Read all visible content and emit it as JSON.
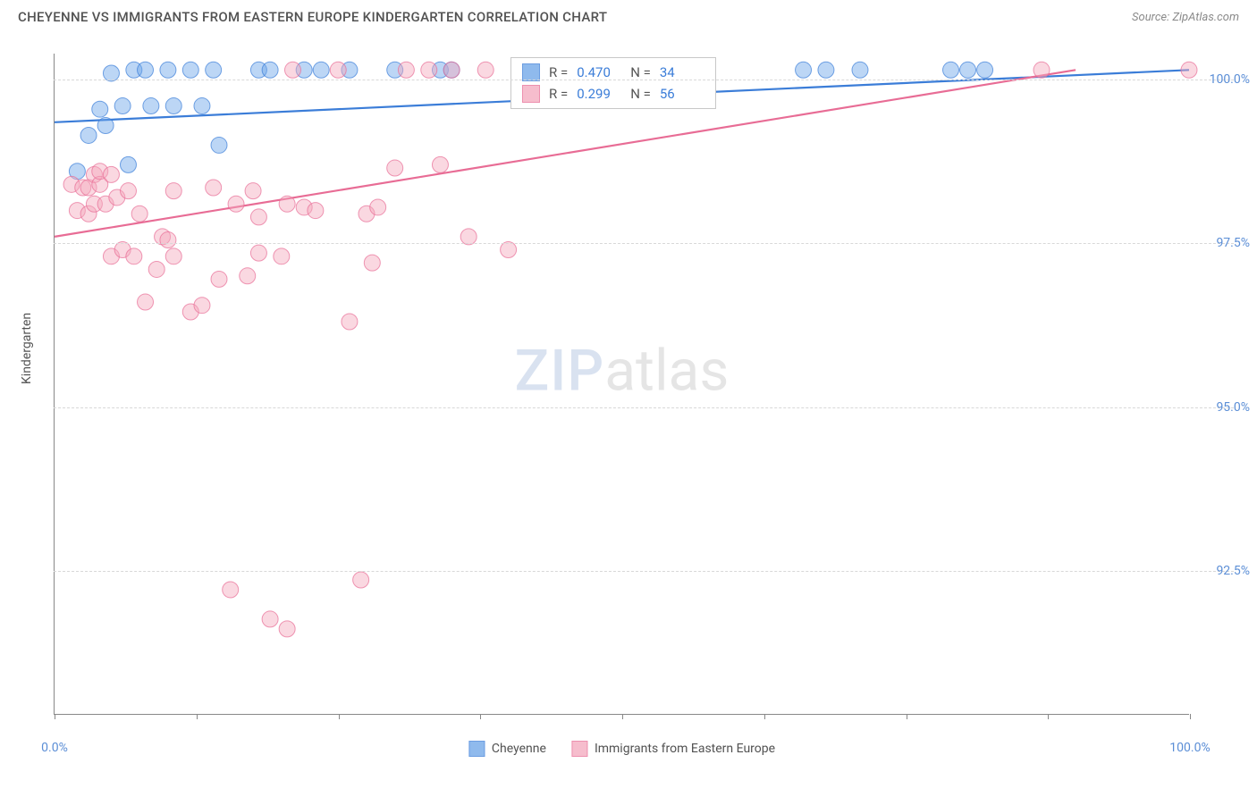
{
  "header": {
    "title": "CHEYENNE VS IMMIGRANTS FROM EASTERN EUROPE KINDERGARTEN CORRELATION CHART",
    "source_prefix": "Source: ",
    "source_name": "ZipAtlas.com"
  },
  "chart": {
    "type": "scatter",
    "ylabel": "Kindergarten",
    "xlim": [
      0,
      100
    ],
    "ylim": [
      90.3,
      100.4
    ],
    "xticks": [
      0,
      12.5,
      25,
      37.5,
      50,
      62.5,
      75,
      87.5,
      100
    ],
    "xtick_labels": {
      "0": "0.0%",
      "100": "100.0%"
    },
    "yticks": [
      92.5,
      95.0,
      97.5,
      100.0
    ],
    "ytick_labels": [
      "92.5%",
      "95.0%",
      "97.5%",
      "100.0%"
    ],
    "background_color": "#ffffff",
    "grid_color": "#d8d8d8",
    "axis_color": "#888888",
    "marker_radius": 9,
    "marker_opacity": 0.45,
    "line_width": 2.2,
    "series": [
      {
        "name": "Cheyenne",
        "color": "#6aa3e8",
        "stroke": "#3b7dd8",
        "R": "0.470",
        "N": "34",
        "trend": {
          "x1": 0,
          "y1": 99.35,
          "x2": 100,
          "y2": 100.15
        },
        "points": [
          [
            2,
            98.6
          ],
          [
            3,
            99.15
          ],
          [
            4,
            99.55
          ],
          [
            4.5,
            99.3
          ],
          [
            5,
            100.1
          ],
          [
            6,
            99.6
          ],
          [
            6.5,
            98.7
          ],
          [
            7,
            100.15
          ],
          [
            8,
            100.15
          ],
          [
            8.5,
            99.6
          ],
          [
            10,
            100.15
          ],
          [
            10.5,
            99.6
          ],
          [
            12,
            100.15
          ],
          [
            13,
            99.6
          ],
          [
            14,
            100.15
          ],
          [
            14.5,
            99.0
          ],
          [
            18,
            100.15
          ],
          [
            19,
            100.15
          ],
          [
            22,
            100.15
          ],
          [
            23.5,
            100.15
          ],
          [
            26,
            100.15
          ],
          [
            30,
            100.15
          ],
          [
            34,
            100.15
          ],
          [
            35,
            100.15
          ],
          [
            42,
            100.15
          ],
          [
            44,
            100.15
          ],
          [
            48,
            100.15
          ],
          [
            66,
            100.15
          ],
          [
            68,
            100.15
          ],
          [
            71,
            100.15
          ],
          [
            79,
            100.15
          ],
          [
            80.5,
            100.15
          ],
          [
            82,
            100.15
          ],
          [
            45,
            100.15
          ]
        ]
      },
      {
        "name": "Immigrants from Eastern Europe",
        "color": "#f4a8bd",
        "stroke": "#e86c95",
        "R": "0.299",
        "N": "56",
        "trend": {
          "x1": 0,
          "y1": 97.6,
          "x2": 90,
          "y2": 100.15
        },
        "points": [
          [
            1.5,
            98.4
          ],
          [
            2,
            98.0
          ],
          [
            2.5,
            98.35
          ],
          [
            3,
            98.35
          ],
          [
            3,
            97.95
          ],
          [
            3.5,
            98.55
          ],
          [
            3.5,
            98.1
          ],
          [
            4,
            98.4
          ],
          [
            4,
            98.6
          ],
          [
            4.5,
            98.1
          ],
          [
            5,
            98.55
          ],
          [
            5,
            97.3
          ],
          [
            5.5,
            98.2
          ],
          [
            6,
            97.4
          ],
          [
            6.5,
            98.3
          ],
          [
            7,
            97.3
          ],
          [
            7.5,
            97.95
          ],
          [
            8,
            96.6
          ],
          [
            9,
            97.1
          ],
          [
            9.5,
            97.6
          ],
          [
            10,
            97.55
          ],
          [
            10.5,
            97.3
          ],
          [
            10.5,
            98.3
          ],
          [
            12,
            96.45
          ],
          [
            13,
            96.55
          ],
          [
            14,
            98.35
          ],
          [
            14.5,
            96.95
          ],
          [
            15.5,
            92.2
          ],
          [
            16,
            98.1
          ],
          [
            17,
            97.0
          ],
          [
            17.5,
            98.3
          ],
          [
            18,
            97.35
          ],
          [
            18,
            97.9
          ],
          [
            19,
            91.75
          ],
          [
            20,
            97.3
          ],
          [
            20.5,
            98.1
          ],
          [
            20.5,
            91.6
          ],
          [
            21,
            100.15
          ],
          [
            22,
            98.05
          ],
          [
            23,
            98.0
          ],
          [
            25,
            100.15
          ],
          [
            26,
            96.3
          ],
          [
            27,
            92.35
          ],
          [
            27.5,
            97.95
          ],
          [
            28,
            97.2
          ],
          [
            28.5,
            98.05
          ],
          [
            30,
            98.65
          ],
          [
            31,
            100.15
          ],
          [
            34,
            98.7
          ],
          [
            35,
            100.15
          ],
          [
            36.5,
            97.6
          ],
          [
            38,
            100.15
          ],
          [
            40,
            97.4
          ],
          [
            87,
            100.15
          ],
          [
            100,
            100.15
          ],
          [
            33,
            100.15
          ]
        ]
      }
    ]
  },
  "watermark": {
    "part1": "ZIP",
    "part2": "atlas"
  },
  "legend": {
    "stats_R_label": "R =",
    "stats_N_label": "N ="
  }
}
